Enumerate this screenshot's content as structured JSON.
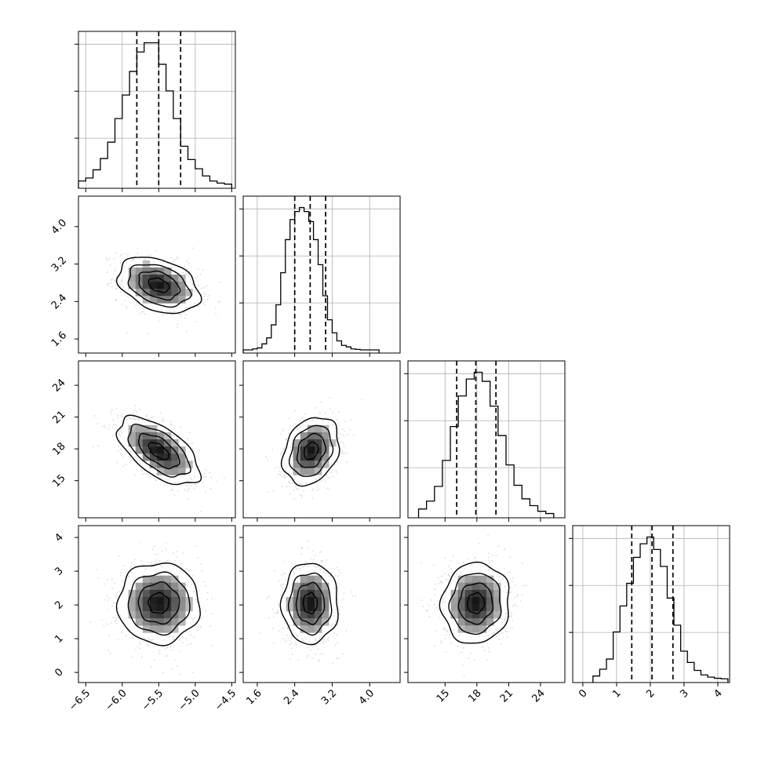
{
  "chart_data": {
    "type": "corner",
    "parameters": [
      {
        "range": [
          -6.6,
          -4.45
        ],
        "ticks": [
          -6.5,
          -6.0,
          -5.5,
          -5.0,
          -4.5
        ],
        "tick_labels": [
          "−6.5",
          "−6.0",
          "−5.5",
          "−5.0",
          "−4.5"
        ],
        "quantiles": [
          -5.8,
          -5.5,
          -5.2
        ],
        "histogram": {
          "bin_edges": [
            -6.6,
            -6.5,
            -6.4,
            -6.3,
            -6.2,
            -6.1,
            -6.0,
            -5.9,
            -5.8,
            -5.7,
            -5.6,
            -5.5,
            -5.4,
            -5.3,
            -5.2,
            -5.1,
            -5.0,
            -4.9,
            -4.8,
            -4.7,
            -4.6,
            -4.5
          ],
          "counts": [
            40,
            70,
            150,
            260,
            420,
            650,
            880,
            1110,
            1300,
            1390,
            1390,
            1180,
            920,
            650,
            380,
            250,
            160,
            90,
            40,
            20,
            10
          ]
        }
      },
      {
        "range": [
          1.3,
          4.65
        ],
        "ticks": [
          1.6,
          2.4,
          3.2,
          4.0
        ],
        "tick_labels": [
          "1.6",
          "2.4",
          "3.2",
          "4.0"
        ],
        "quantiles": [
          2.4,
          2.73,
          3.06
        ],
        "histogram": {
          "bin_edges": [
            1.3,
            1.4,
            1.5,
            1.6,
            1.7,
            1.8,
            1.9,
            2.0,
            2.1,
            2.2,
            2.3,
            2.4,
            2.5,
            2.6,
            2.7,
            2.8,
            2.9,
            3.0,
            3.1,
            3.2,
            3.3,
            3.4,
            3.5,
            3.6,
            3.7,
            3.8,
            3.9,
            4.0,
            4.1,
            4.2
          ],
          "counts": [
            0,
            0,
            10,
            20,
            60,
            120,
            250,
            450,
            770,
            1100,
            1300,
            1380,
            1420,
            1380,
            1280,
            1100,
            850,
            540,
            300,
            170,
            90,
            45,
            30,
            10,
            5,
            0,
            0,
            0,
            0
          ]
        }
      },
      {
        "range": [
          11.5,
          26.3
        ],
        "ticks": [
          15,
          18,
          21,
          24
        ],
        "tick_labels": [
          "15",
          "18",
          "21",
          "24"
        ],
        "quantiles": [
          16.1,
          17.9,
          19.8
        ],
        "histogram": {
          "bin_edges": [
            12.5,
            13.25,
            14.0,
            14.75,
            15.5,
            16.25,
            17.0,
            17.75,
            18.5,
            19.25,
            20.0,
            20.75,
            21.5,
            22.25,
            23.0,
            23.75,
            24.5,
            25.25
          ],
          "counts": [
            50,
            120,
            250,
            480,
            780,
            1050,
            1200,
            1260,
            1180,
            960,
            700,
            440,
            260,
            140,
            80,
            30,
            10
          ]
        }
      },
      {
        "range": [
          -0.3,
          4.35
        ],
        "ticks": [
          0,
          1,
          2,
          3,
          4
        ],
        "tick_labels": [
          "0",
          "1",
          "2",
          "3",
          "4"
        ],
        "quantiles": [
          1.45,
          2.05,
          2.67
        ],
        "histogram": {
          "bin_edges": [
            0.3,
            0.5,
            0.7,
            0.9,
            1.1,
            1.3,
            1.5,
            1.7,
            1.9,
            2.1,
            2.3,
            2.5,
            2.7,
            2.9,
            3.1,
            3.3,
            3.5,
            3.7,
            3.9,
            4.1,
            4.3
          ],
          "counts": [
            30,
            90,
            180,
            420,
            650,
            850,
            1080,
            1200,
            1260,
            1150,
            1000,
            720,
            480,
            250,
            150,
            80,
            40,
            20,
            10,
            5
          ]
        }
      }
    ],
    "pairs": [
      {
        "i": 1,
        "j": 0,
        "mean": [
          -5.5,
          2.75
        ],
        "std": [
          0.28,
          0.3
        ],
        "corr": -0.35
      },
      {
        "i": 2,
        "j": 0,
        "mean": [
          -5.5,
          17.8
        ],
        "std": [
          0.28,
          1.6
        ],
        "corr": -0.6
      },
      {
        "i": 2,
        "j": 1,
        "mean": [
          2.75,
          17.8
        ],
        "std": [
          0.3,
          1.6
        ],
        "corr": 0.25
      },
      {
        "i": 3,
        "j": 0,
        "mean": [
          -5.5,
          2.05
        ],
        "std": [
          0.28,
          0.6
        ],
        "corr": 0.0
      },
      {
        "i": 3,
        "j": 1,
        "mean": [
          2.73,
          2.05
        ],
        "std": [
          0.3,
          0.6
        ],
        "corr": 0.0
      },
      {
        "i": 3,
        "j": 2,
        "mean": [
          17.9,
          2.05
        ],
        "std": [
          1.6,
          0.6
        ],
        "corr": 0.05
      }
    ],
    "grid": true,
    "colors": {
      "line": "#000000",
      "grid": "#b0b0b0",
      "points": "#bdbdbd",
      "frame": "#000000"
    }
  }
}
